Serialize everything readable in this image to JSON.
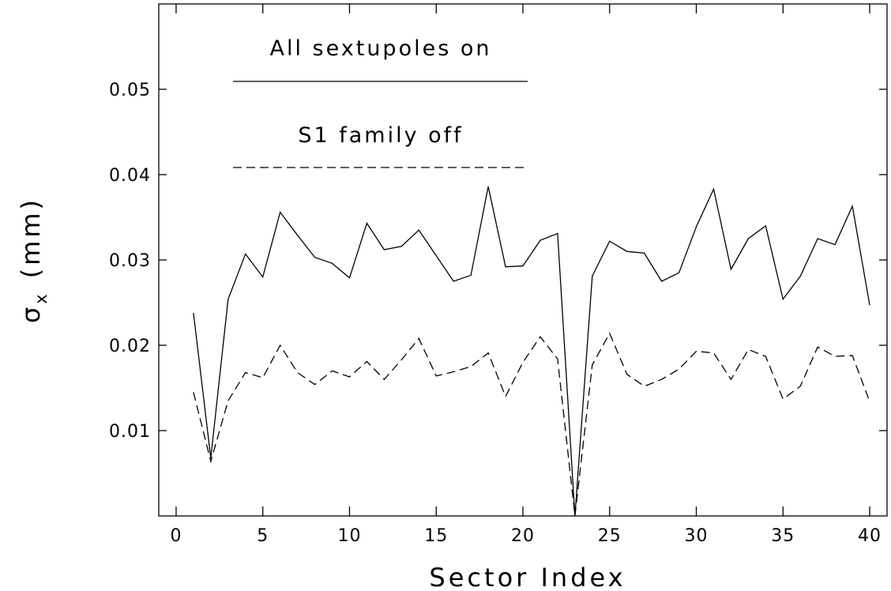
{
  "chart_data": {
    "type": "line",
    "xlabel": "Sector Index",
    "ylabel": "σx (mm)",
    "ylabel_symbol": "σ",
    "ylabel_subscript": "x",
    "ylabel_unit": "(mm)",
    "xlim": [
      -1,
      41
    ],
    "ylim": [
      0,
      0.06
    ],
    "x_ticks": [
      0,
      5,
      10,
      15,
      20,
      25,
      30,
      35,
      40
    ],
    "x_tick_labels": [
      "0",
      "5",
      "10",
      "15",
      "20",
      "25",
      "30",
      "35",
      "40"
    ],
    "y_ticks": [
      0.01,
      0.02,
      0.03,
      0.04,
      0.05
    ],
    "y_tick_labels": [
      "0.01",
      "0.02",
      "0.03",
      "0.04",
      "0.05"
    ],
    "grid": false,
    "legend_placement": "top-left",
    "x": [
      1,
      2,
      3,
      4,
      5,
      6,
      7,
      8,
      9,
      10,
      11,
      12,
      13,
      14,
      15,
      16,
      17,
      18,
      19,
      20,
      21,
      22,
      23,
      24,
      25,
      26,
      27,
      28,
      29,
      30,
      31,
      32,
      33,
      34,
      35,
      36,
      37,
      38,
      39,
      40
    ],
    "series": [
      {
        "name": "All sextupoles on",
        "style": "solid",
        "values": [
          0.0238,
          0.0068,
          0.0254,
          0.0307,
          0.028,
          0.0356,
          0.0329,
          0.0303,
          0.0296,
          0.0279,
          0.0343,
          0.0312,
          0.0316,
          0.0335,
          0.0305,
          0.0275,
          0.0282,
          0.0386,
          0.0292,
          0.0293,
          0.0323,
          0.0331,
          0.0,
          0.0281,
          0.0322,
          0.031,
          0.0308,
          0.0275,
          0.0285,
          0.0339,
          0.0383,
          0.0289,
          0.0325,
          0.034,
          0.0254,
          0.0281,
          0.0325,
          0.0318,
          0.0363,
          0.0247
        ]
      },
      {
        "name": "S1 family off",
        "style": "dashed",
        "values": [
          0.0145,
          0.0064,
          0.0135,
          0.0168,
          0.0162,
          0.02,
          0.0168,
          0.0154,
          0.017,
          0.0163,
          0.0181,
          0.016,
          0.0183,
          0.0208,
          0.0164,
          0.0169,
          0.0175,
          0.0191,
          0.014,
          0.018,
          0.021,
          0.0184,
          0.0,
          0.0177,
          0.0214,
          0.0166,
          0.0152,
          0.016,
          0.0172,
          0.0193,
          0.0191,
          0.016,
          0.0195,
          0.0187,
          0.0137,
          0.0152,
          0.0198,
          0.0187,
          0.0188,
          0.0134
        ]
      }
    ]
  }
}
